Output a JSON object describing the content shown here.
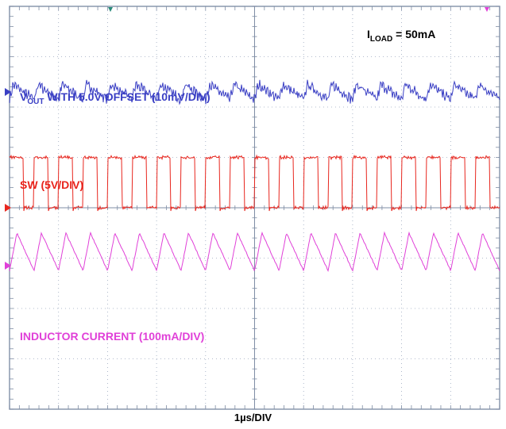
{
  "chart_data": {
    "type": "line",
    "title": "",
    "xlabel": "1µs/DIV",
    "grid": true,
    "divisions": {
      "x": 10,
      "y": 8
    },
    "annotation": {
      "prefix": "I",
      "subscript": "LOAD",
      "suffix": " = 50mA"
    },
    "series": [
      {
        "name": "VOUT WITH 5.0V OFFSET (10mV/DIV)",
        "label_prefix": "V",
        "label_subscript": "OUT",
        "label_suffix": " WITH 5.0V OFFSET (10mV/DIV)",
        "color": "#3a3fc4",
        "waveform": "ripple",
        "cycles": 20,
        "center_div": 1.7,
        "peak_to_peak_div": 0.3
      },
      {
        "name": "SW (5V/DIV)",
        "label_prefix": "SW (5V/DIV)",
        "color": "#e8261e",
        "waveform": "square",
        "cycles": 20,
        "high_div": 3.0,
        "low_div": 4.0,
        "duty_high": 0.58
      },
      {
        "name": "INDUCTOR CURRENT (100mA/DIV)",
        "label_prefix": "INDUCTOR CURRENT (100mA/DIV)",
        "color": "#e040d8",
        "waveform": "triangle",
        "cycles": 20,
        "peak_div": 4.5,
        "valley_div": 5.25
      }
    ]
  }
}
